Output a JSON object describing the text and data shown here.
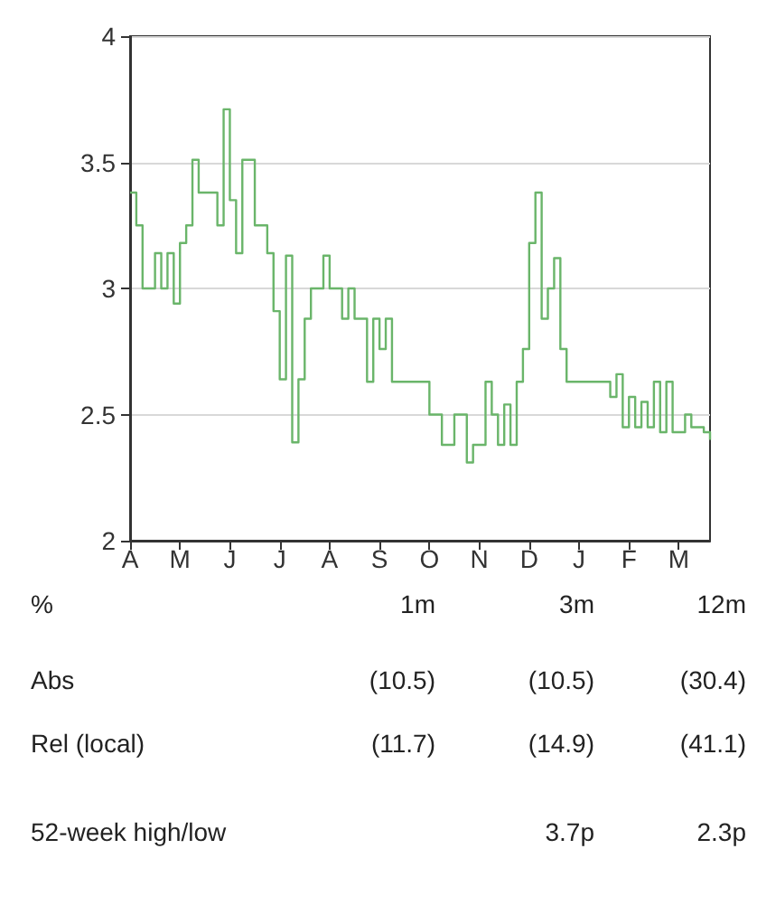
{
  "chart_data": {
    "type": "step",
    "color": "#6ab56a",
    "categories": [
      "A",
      null,
      null,
      null,
      null,
      null,
      null,
      null,
      "M",
      null,
      null,
      null,
      null,
      null,
      null,
      null,
      "J",
      null,
      null,
      null,
      null,
      null,
      null,
      null,
      "J",
      null,
      null,
      null,
      null,
      null,
      null,
      null,
      "A",
      null,
      null,
      null,
      null,
      null,
      null,
      null,
      "S",
      null,
      null,
      null,
      null,
      null,
      null,
      null,
      "O",
      null,
      null,
      null,
      null,
      null,
      null,
      null,
      "N",
      null,
      null,
      null,
      null,
      null,
      null,
      null,
      "D",
      null,
      null,
      null,
      null,
      null,
      null,
      null,
      "J",
      null,
      null,
      null,
      null,
      null,
      null,
      null,
      "F",
      null,
      null,
      null,
      null,
      null,
      null,
      null,
      "M",
      null,
      null,
      null,
      null,
      null
    ],
    "values": [
      3.38,
      3.25,
      3.0,
      3.0,
      3.14,
      3.0,
      3.14,
      2.94,
      3.18,
      3.25,
      3.51,
      3.38,
      3.38,
      3.38,
      3.25,
      3.71,
      3.35,
      3.14,
      3.51,
      3.51,
      3.25,
      3.25,
      3.14,
      2.91,
      2.64,
      3.13,
      2.39,
      2.64,
      2.88,
      3.0,
      3.0,
      3.13,
      3.0,
      3.0,
      2.88,
      3.0,
      2.88,
      2.88,
      2.63,
      2.88,
      2.76,
      2.88,
      2.63,
      2.63,
      2.63,
      2.63,
      2.63,
      2.63,
      2.5,
      2.5,
      2.38,
      2.38,
      2.5,
      2.5,
      2.31,
      2.38,
      2.38,
      2.63,
      2.5,
      2.38,
      2.54,
      2.38,
      2.63,
      2.76,
      3.18,
      3.38,
      2.88,
      3.0,
      3.12,
      2.76,
      2.63,
      2.63,
      2.63,
      2.63,
      2.63,
      2.63,
      2.63,
      2.57,
      2.66,
      2.45,
      2.57,
      2.45,
      2.55,
      2.45,
      2.63,
      2.43,
      2.63,
      2.43,
      2.43,
      2.5,
      2.45,
      2.45,
      2.43,
      2.4
    ],
    "ylim": [
      2,
      4
    ],
    "yticks": [
      2,
      2.5,
      3,
      3.5,
      4
    ],
    "grid": "y",
    "marker": "none",
    "annotations": [
      "%",
      "1m",
      "3m",
      "12m",
      "Abs",
      "(10.5)",
      "(10.5)",
      "(30.4)",
      "Rel (local)",
      "(11.7)",
      "(14.9)",
      "(41.1)",
      "52-week high/low",
      "3.7p",
      "2.3p"
    ]
  }
}
